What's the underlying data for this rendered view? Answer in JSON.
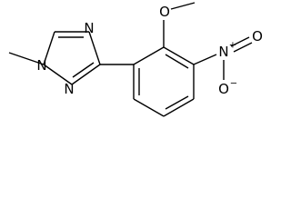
{
  "nodes": [
    {
      "label": "N"
    },
    {
      "label": "N"
    },
    {
      "label": "N"
    },
    {
      "label": "O"
    },
    {
      "label": "N",
      "charge": "+"
    },
    {
      "label": "O"
    },
    {
      "label": "O",
      "charge": "−"
    }
  ]
}
